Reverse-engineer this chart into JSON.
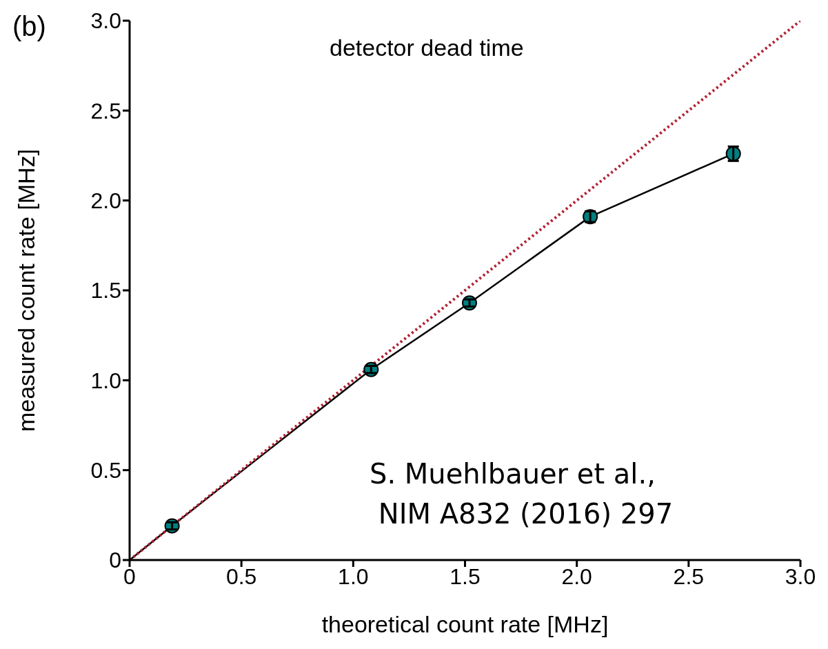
{
  "chart_data": {
    "type": "scatter",
    "xlabel": "theoretical count rate [MHz]",
    "ylabel": "measured count rate [MHz]",
    "annotations": [
      "(b)",
      "detector dead time",
      "S. Muehlbauer et al.,\n NIM A832 (2016) 297"
    ],
    "x": [
      0.19,
      1.08,
      1.52,
      2.06,
      2.7
    ],
    "series": [
      {
        "type": "line",
        "color": "#000000",
        "x": [
          0,
          0.19,
          1.08,
          1.52,
          2.06,
          2.7
        ],
        "values": [
          0,
          0.19,
          1.06,
          1.43,
          1.91,
          2.26
        ],
        "marker": "none",
        "line_style": "solid"
      },
      {
        "type": "line",
        "color": "#b22232",
        "x": [
          0,
          3.0
        ],
        "values": [
          0,
          3.0
        ],
        "marker": "none",
        "line_style": "dotted"
      },
      {
        "color": "#008080",
        "values": [
          0.19,
          1.06,
          1.43,
          1.91,
          2.26
        ],
        "errors": [
          0.02,
          0.02,
          0.02,
          0.03,
          0.04
        ],
        "marker": "circle"
      }
    ],
    "xlim": [
      0,
      3.0
    ],
    "xticks": [
      0,
      0.5,
      {
        "value": 1,
        "label": "1.0"
      },
      1.5,
      {
        "value": 2,
        "label": "2.0"
      },
      2.5,
      {
        "value": 3,
        "label": "3.0"
      }
    ],
    "ylim": [
      0,
      3.0
    ],
    "yticks": [
      0,
      0.5,
      {
        "value": 1,
        "label": "1.0"
      },
      1.5,
      {
        "value": 2,
        "label": "2.0"
      },
      2.5,
      {
        "value": 3,
        "label": "3.0"
      }
    ]
  }
}
